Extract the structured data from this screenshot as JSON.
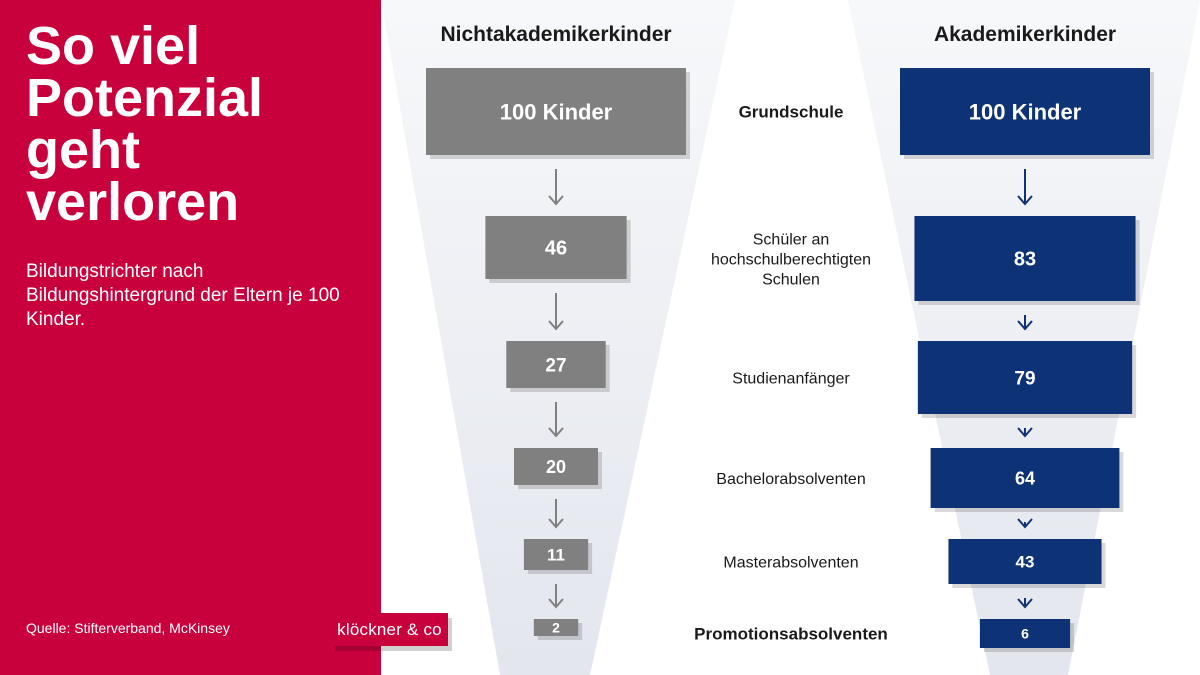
{
  "title": "So viel Potenzial geht verloren",
  "subtitle": "Bildungstrichter nach Bildungshintergrund der Eltern je 100 Kinder.",
  "source": "Quelle: Stifterverband, McKinsey",
  "logo": "klöckner & co",
  "colors": {
    "brand_red": "#c8003c",
    "non_academic": "#808080",
    "academic": "#0d3276",
    "funnel_shade": "#e9ebf2"
  },
  "chart_data": {
    "type": "bar",
    "categories": [
      "Grundschule",
      "Schüler an hochschulberechtigten Schulen",
      "Studienanfänger",
      "Bachelorabsolventen",
      "Masterabsolventen",
      "Promotionsabsolventen"
    ],
    "category_lines": [
      [
        "Grundschule"
      ],
      [
        "Schüler an",
        "hochschulberechtigten",
        "Schulen"
      ],
      [
        "Studienanfänger"
      ],
      [
        "Bachelorabsolventen"
      ],
      [
        "Masterabsolventen"
      ],
      [
        "Promotionsabsolventen"
      ]
    ],
    "bold_categories": [
      "Grundschule",
      "Promotionsabsolventen"
    ],
    "series": [
      {
        "name": "Nichtakademikerkinder",
        "values": [
          100,
          46,
          27,
          20,
          11,
          2
        ],
        "labels": [
          "100 Kinder",
          "46",
          "27",
          "20",
          "11",
          "2"
        ],
        "color": "#808080"
      },
      {
        "name": "Akademikerkinder",
        "values": [
          100,
          83,
          79,
          64,
          43,
          6
        ],
        "labels": [
          "100 Kinder",
          "83",
          "79",
          "64",
          "43",
          "6"
        ],
        "color": "#0d3276"
      }
    ]
  }
}
